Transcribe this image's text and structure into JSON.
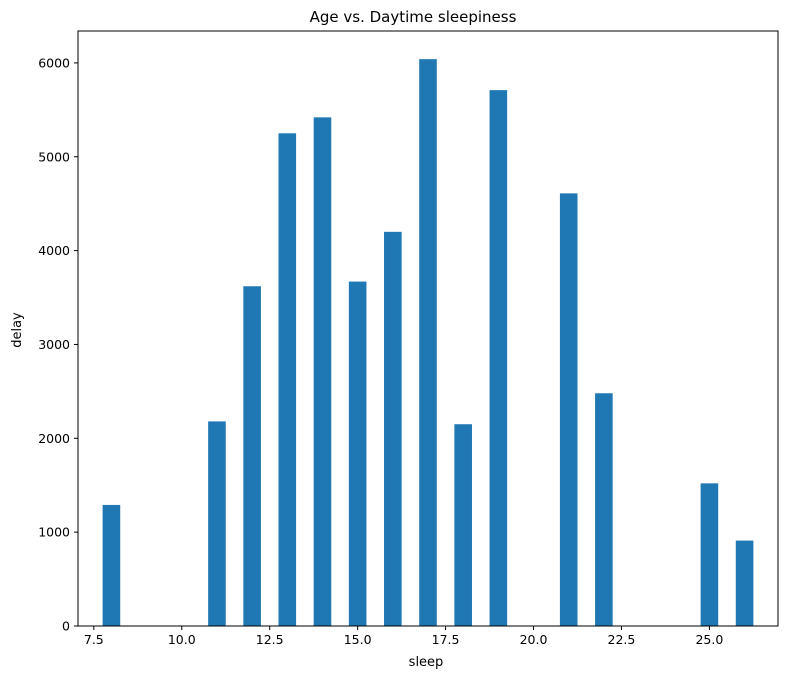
{
  "chart_data": {
    "type": "bar",
    "title": "Age vs. Daytime sleepiness",
    "xlabel": "sleep",
    "ylabel": "delay",
    "x": [
      8,
      11,
      12,
      13,
      14,
      15,
      16,
      17,
      18,
      19,
      21,
      22,
      25,
      26
    ],
    "values": [
      1290,
      2180,
      3620,
      5250,
      5420,
      3670,
      4200,
      6040,
      2150,
      5710,
      4610,
      2480,
      1520,
      910
    ],
    "bar_width": 0.5,
    "xlim": [
      7.05,
      26.95
    ],
    "ylim": [
      0,
      6340
    ],
    "xticks": [
      7.5,
      10.0,
      12.5,
      15.0,
      17.5,
      20.0,
      22.5,
      25.0
    ],
    "xtick_labels": [
      "7.5",
      "10.0",
      "12.5",
      "15.0",
      "17.5",
      "20.0",
      "22.5",
      "25.0"
    ],
    "yticks": [
      0,
      1000,
      2000,
      3000,
      4000,
      5000,
      6000
    ],
    "ytick_labels": [
      "0",
      "1000",
      "2000",
      "3000",
      "4000",
      "5000",
      "6000"
    ],
    "bar_color": "#1f77b4",
    "grid": false,
    "legend": "none"
  }
}
